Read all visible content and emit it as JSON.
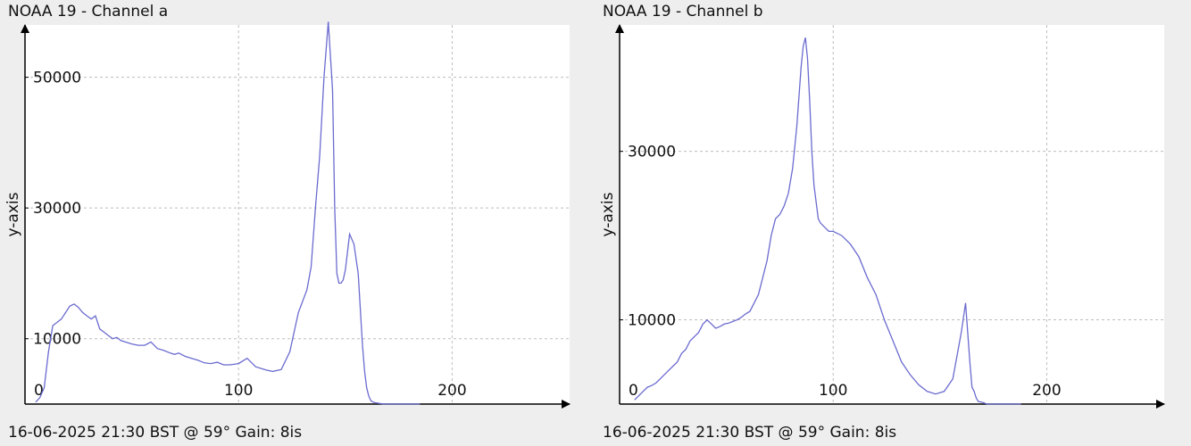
{
  "chart_data": [
    {
      "type": "line",
      "title": "NOAA 19 - Channel a",
      "footer": "16-06-2025 21:30 BST @ 59° Gain: 8is",
      "xlabel": "",
      "ylabel": "y-axis",
      "xlim": [
        0,
        255
      ],
      "ylim": [
        0,
        58000
      ],
      "x_ticks": [
        0,
        100,
        200
      ],
      "y_ticks": [
        10000,
        30000,
        50000
      ],
      "y_zero_label": "0",
      "grid": true,
      "color": "#6b6bd0",
      "x": [
        5,
        7,
        9,
        11,
        13,
        15,
        17,
        19,
        21,
        23,
        25,
        27,
        29,
        31,
        33,
        35,
        37,
        39,
        41,
        43,
        45,
        47,
        50,
        53,
        56,
        59,
        62,
        65,
        68,
        70,
        72,
        75,
        78,
        81,
        84,
        87,
        90,
        93,
        96,
        100,
        104,
        108,
        111,
        113,
        116,
        120,
        124,
        128,
        132,
        134,
        136,
        138,
        140,
        142,
        144,
        145,
        146,
        147,
        148,
        149,
        150,
        152,
        154,
        156,
        158,
        159,
        160,
        161,
        162,
        163,
        164,
        166,
        168,
        170,
        172,
        175,
        180,
        185
      ],
      "y": [
        300,
        1000,
        2500,
        8000,
        12000,
        12500,
        13000,
        14000,
        15000,
        15300,
        14800,
        14000,
        13500,
        13000,
        13500,
        11500,
        11000,
        10500,
        10000,
        10200,
        9700,
        9500,
        9200,
        9000,
        9000,
        9500,
        8500,
        8200,
        7800,
        7600,
        7800,
        7300,
        7000,
        6700,
        6300,
        6200,
        6400,
        6000,
        6000,
        6200,
        7000,
        5700,
        5400,
        5200,
        5000,
        5300,
        8000,
        14000,
        17500,
        21000,
        30000,
        38000,
        50000,
        58500,
        48000,
        30000,
        20000,
        18500,
        18500,
        19000,
        20500,
        26000,
        24500,
        20000,
        9000,
        5000,
        2500,
        1200,
        500,
        300,
        200,
        100,
        0,
        0,
        0,
        0,
        0,
        0
      ]
    },
    {
      "type": "line",
      "title": "NOAA 19 - Channel b",
      "footer": "16-06-2025 21:30 BST @ 59° Gain: 8is",
      "xlabel": "",
      "ylabel": "y-axis",
      "xlim": [
        0,
        255
      ],
      "ylim": [
        0,
        45000
      ],
      "x_ticks": [
        0,
        100,
        200
      ],
      "y_ticks": [
        10000,
        30000
      ],
      "y_zero_label": "0",
      "grid": true,
      "color": "#6b6bd0",
      "x": [
        7,
        9,
        11,
        13,
        15,
        17,
        19,
        21,
        23,
        25,
        27,
        29,
        31,
        33,
        35,
        37,
        39,
        41,
        43,
        45,
        47,
        49,
        51,
        53,
        55,
        57,
        59,
        61,
        63,
        65,
        67,
        69,
        71,
        73,
        75,
        77,
        79,
        81,
        83,
        85,
        86,
        87,
        88,
        89,
        90,
        91,
        92,
        93,
        94,
        96,
        98,
        100,
        104,
        108,
        112,
        116,
        120,
        124,
        128,
        132,
        136,
        140,
        144,
        148,
        152,
        156,
        160,
        162,
        164,
        165,
        166,
        167,
        168,
        170,
        172,
        176,
        180,
        188
      ],
      "y": [
        500,
        1000,
        1500,
        2000,
        2200,
        2500,
        3000,
        3500,
        4000,
        4500,
        5000,
        6000,
        6500,
        7500,
        8000,
        8500,
        9500,
        10000,
        9500,
        9000,
        9200,
        9500,
        9600,
        9800,
        10000,
        10300,
        10700,
        11000,
        12000,
        13000,
        15000,
        17000,
        20000,
        22000,
        22500,
        23500,
        25000,
        28000,
        33000,
        40000,
        42500,
        43500,
        41000,
        36000,
        30000,
        26000,
        24000,
        22000,
        21500,
        21000,
        20500,
        20500,
        20000,
        19000,
        17500,
        15000,
        13000,
        10000,
        7500,
        5000,
        3500,
        2300,
        1500,
        1200,
        1500,
        3000,
        8500,
        12000,
        5000,
        2000,
        1500,
        700,
        300,
        200,
        0,
        0,
        0,
        0
      ]
    }
  ]
}
